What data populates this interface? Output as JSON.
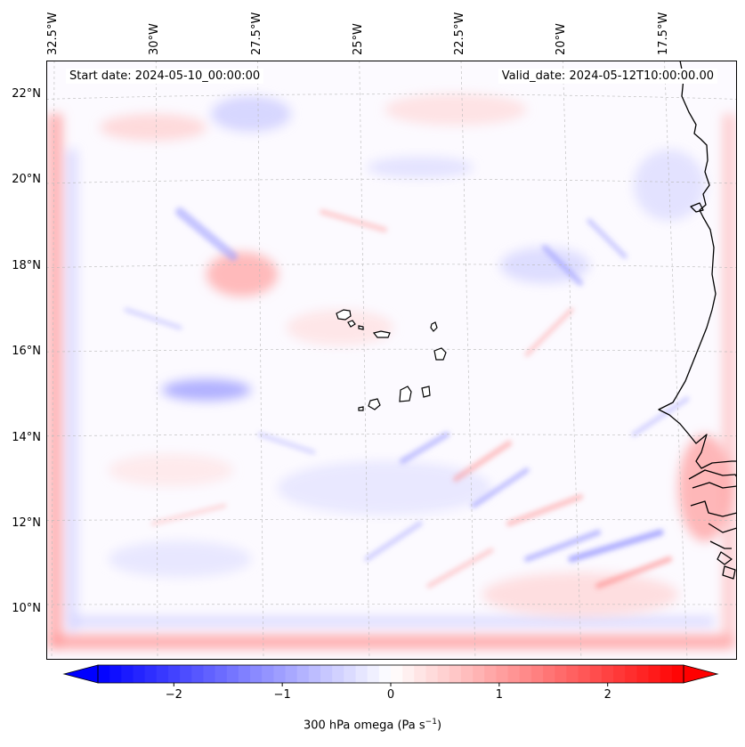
{
  "header": {
    "start_date": "Start date: 2024-05-10_00:00:00",
    "valid_date": "Valid_date: 2024-05-12T10:00:00.00"
  },
  "map": {
    "projection": "lambert-conformal",
    "lon_ticks": [
      {
        "label": "32.5°W",
        "lon": -32.5
      },
      {
        "label": "30°W",
        "lon": -30
      },
      {
        "label": "27.5°W",
        "lon": -27.5
      },
      {
        "label": "25°W",
        "lon": -25
      },
      {
        "label": "22.5°W",
        "lon": -22.5
      },
      {
        "label": "20°W",
        "lon": -20
      },
      {
        "label": "17.5°W",
        "lon": -17.5
      }
    ],
    "lat_ticks": [
      {
        "label": "22°N",
        "lat": 22
      },
      {
        "label": "20°N",
        "lat": 20
      },
      {
        "label": "18°N",
        "lat": 18
      },
      {
        "label": "16°N",
        "lat": 16
      },
      {
        "label": "14°N",
        "lat": 14
      },
      {
        "label": "12°N",
        "lat": 12
      },
      {
        "label": "10°N",
        "lat": 10
      }
    ],
    "gridlines": true,
    "field": "300 hPa omega",
    "features": [
      "Cape Verde islands",
      "West African coastline"
    ]
  },
  "colorbar": {
    "label_main": "300 hPa omega (Pa s",
    "label_exp": "−1",
    "label_close": ")",
    "range": [
      -2.7,
      2.7
    ],
    "extend": "both",
    "ticks": [
      {
        "label": "−2",
        "value": -2
      },
      {
        "label": "−1",
        "value": -1
      },
      {
        "label": "0",
        "value": 0
      },
      {
        "label": "1",
        "value": 1
      },
      {
        "label": "2",
        "value": 2
      }
    ],
    "colors": {
      "min": "#0000ff",
      "mid": "#ffffff",
      "max": "#ff0000"
    }
  }
}
